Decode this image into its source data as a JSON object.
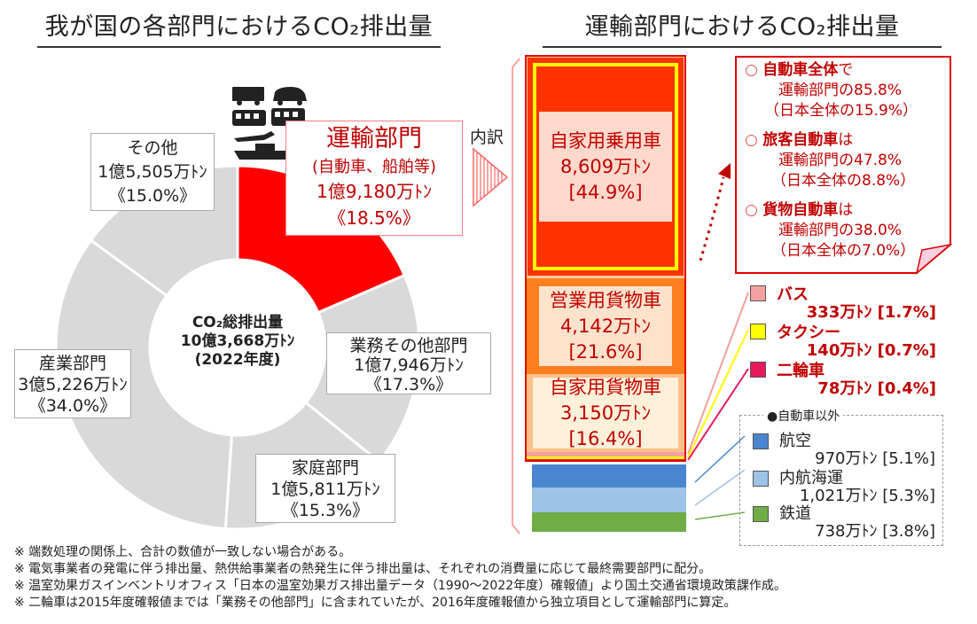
{
  "left_title": "我が国の各部門におけるCO₂排出量",
  "right_title": "運輸部門におけるCO₂排出量",
  "center": {
    "line1": "CO₂総排出量",
    "line2": "10億3,668万ﾄﾝ",
    "line3": "(2022年度)"
  },
  "transport_label": {
    "name": "運輸部門",
    "sub": "(自動車、船舶等)",
    "value": "1億9,180万ﾄﾝ",
    "pct": "《18.5%》"
  },
  "other_label": {
    "name": "その他",
    "value": "1億5,505万ﾄﾝ",
    "pct": "《15.0%》"
  },
  "business_label": {
    "name": "業務その他部門",
    "value": "1億7,946万ﾄﾝ",
    "pct": "《17.3%》"
  },
  "household_label": {
    "name": "家庭部門",
    "value": "1億5,811万ﾄﾝ",
    "pct": "《15.3%》"
  },
  "industry_label": {
    "name": "産業部門",
    "value": "3億5,226万ﾄﾝ",
    "pct": "《34.0%》"
  },
  "breakdown_label": "内訳",
  "bars": {
    "private_car": {
      "name": "自家用乗用車",
      "value": "8,609万ﾄﾝ",
      "pct": "[44.9%]"
    },
    "commercial_freight": {
      "name": "営業用貨物車",
      "value": "4,142万ﾄﾝ",
      "pct": "[21.6%]"
    },
    "private_freight": {
      "name": "自家用貨物車",
      "value": "3,150万ﾄﾝ",
      "pct": "[16.4%]"
    }
  },
  "callout": {
    "l1a": "自動車全体",
    "l1b": "で",
    "l1c": "運輸部門の85.8%",
    "l1d": "（日本全体の15.9%）",
    "l2a": "旅客自動車",
    "l2b": "は",
    "l2c": "運輸部門の47.8%",
    "l2d": "（日本全体の8.8%）",
    "l3a": "貨物自動車",
    "l3b": "は",
    "l3c": "運輸部門の38.0%",
    "l3d": "（日本全体の7.0%）"
  },
  "small_vehicles": [
    {
      "name": "バス",
      "value": "333万ﾄﾝ [1.7%]"
    },
    {
      "name": "タクシー",
      "value": "140万ﾄﾝ [0.7%]"
    },
    {
      "name": "二輪車",
      "value": "78万ﾄﾝ [0.4%]"
    }
  ],
  "non_auto": {
    "title": "●自動車以外",
    "items": [
      {
        "name": "航空",
        "value": "970万ﾄﾝ [5.1%]"
      },
      {
        "name": "内航海運",
        "value": "1,021万ﾄﾝ [5.3%]"
      },
      {
        "name": "鉄道",
        "value": "738万ﾄﾝ [3.8%]"
      }
    ]
  },
  "notes": [
    "※ 端数処理の関係上、合計の数値が一致しない場合がある。",
    "※ 電気事業者の発電に伴う排出量、熱供給事業者の熱発生に伴う排出量は、それぞれの消費量に応じて最終需要部門に配分。",
    "※ 温室効果ガスインベントリオフィス「日本の温室効果ガス排出量データ（1990～2022年度）確報値」より国土交通省環境政策課作成。",
    "※ 二輪車は2015年度確報値までは「業務その他部門」に含まれていたが、2016年度確報値から独立項目として運輸部門に算定。"
  ],
  "colors": {
    "transport": "#ff0000",
    "other_sectors": "#d9d9d9",
    "private_car": "#ff3300",
    "highlight": "#ffff00",
    "commercial_freight": "#ff7f1f",
    "private_freight": "#fff0d9",
    "bus": "#f4a0a0",
    "taxi": "#ffff00",
    "motorcycle": "#e8195a",
    "air": "#4a86d0",
    "ship": "#9dc3e6",
    "rail": "#70ad47"
  },
  "chart_data": [
    {
      "type": "pie",
      "title": "我が国の各部門におけるCO₂排出量",
      "center_label": "CO₂総排出量 10億3,668万ﾄﾝ (2022年度)",
      "unit": "万ﾄﾝ",
      "slices": [
        {
          "label": "運輸部門",
          "value": 19180,
          "pct": 18.5
        },
        {
          "label": "業務その他部門",
          "value": 17946,
          "pct": 17.3
        },
        {
          "label": "家庭部門",
          "value": 15811,
          "pct": 15.3
        },
        {
          "label": "産業部門",
          "value": 35226,
          "pct": 34.0
        },
        {
          "label": "その他",
          "value": 15505,
          "pct": 15.0
        }
      ]
    },
    {
      "type": "bar",
      "title": "運輸部門におけるCO₂排出量",
      "stacked": true,
      "unit": "万ﾄﾝ",
      "segments": [
        {
          "label": "自家用乗用車",
          "value": 8609,
          "pct": 44.9
        },
        {
          "label": "営業用貨物車",
          "value": 4142,
          "pct": 21.6
        },
        {
          "label": "自家用貨物車",
          "value": 3150,
          "pct": 16.4
        },
        {
          "label": "バス",
          "value": 333,
          "pct": 1.7
        },
        {
          "label": "タクシー",
          "value": 140,
          "pct": 0.7
        },
        {
          "label": "二輪車",
          "value": 78,
          "pct": 0.4
        },
        {
          "label": "航空",
          "value": 970,
          "pct": 5.1
        },
        {
          "label": "内航海運",
          "value": 1021,
          "pct": 5.3
        },
        {
          "label": "鉄道",
          "value": 738,
          "pct": 3.8
        }
      ]
    }
  ]
}
